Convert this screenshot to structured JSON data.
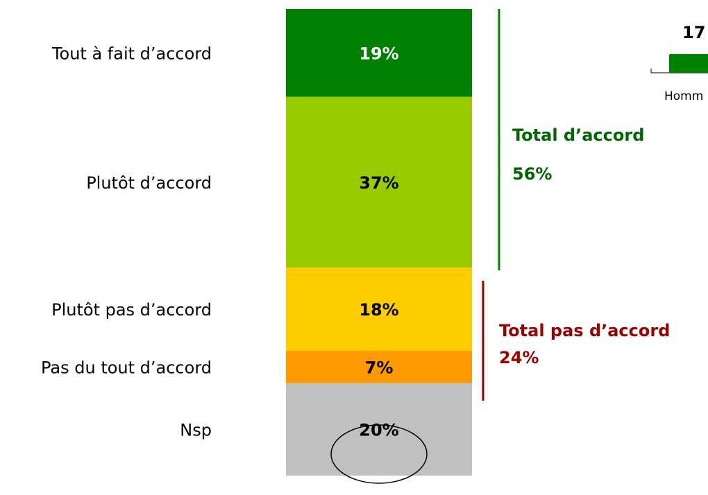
{
  "chart_data": {
    "type": "bar",
    "stacked": true,
    "categories": [
      "Tout à fait d’accord",
      "Plutôt d’accord",
      "Plutôt pas d’accord",
      "Pas du tout d’accord",
      "Nsp"
    ],
    "values": [
      19,
      37,
      18,
      7,
      20
    ],
    "value_labels": [
      "19%",
      "37%",
      "18%",
      "7%",
      "20%"
    ],
    "colors": [
      "#008000",
      "#99cc00",
      "#ffcc00",
      "#ff9900",
      "#c0c0c0"
    ],
    "label_colors": [
      "#ffffff",
      "#000000",
      "#000000",
      "#000000",
      "#000000"
    ],
    "annotations": [
      {
        "title": "Total d’accord",
        "value": 56,
        "label": "56%",
        "color": "#006600"
      },
      {
        "title": "Total pas d’accord",
        "value": 24,
        "label": "24%",
        "color": "#990000"
      }
    ],
    "inset": {
      "categories": [
        "Homm"
      ],
      "values": [
        17
      ],
      "color": "#008000"
    }
  }
}
